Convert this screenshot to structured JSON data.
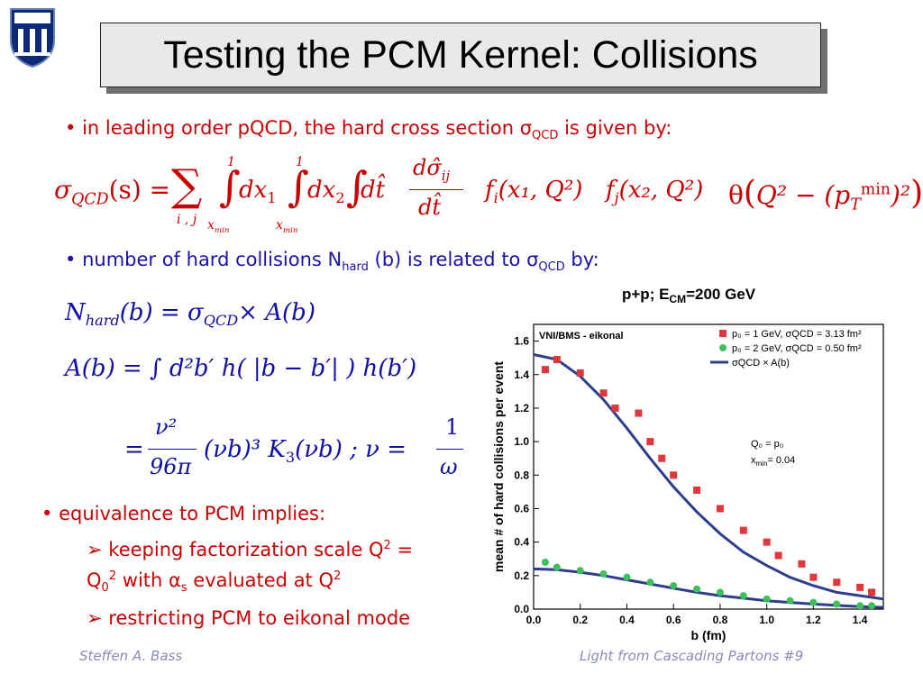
{
  "slide": {
    "title": "Testing the PCM Kernel: Collisions",
    "crest_icon": "university-crest-icon",
    "bullet1": {
      "text": "in leading order pQCD, the hard cross section σ",
      "sub": "QCD",
      "tail": " is given by:"
    },
    "formula1": {
      "lhs": "σ",
      "lhs_sub": "QCD",
      "lhs_arg": "(s) =",
      "sum_sub": "i , j",
      "int_upper": "1",
      "int_lower": "x",
      "int_lower_sub": "min",
      "dx1": "dx",
      "dx1_sub": "1",
      "dx2": "dx",
      "dx2_sub": "2",
      "dt": "dt̂",
      "frac_num": "dσ̂",
      "frac_num_sub": "ij",
      "frac_den": "dt̂",
      "fi": "f",
      "fi_sub": "i",
      "fi_arg": "(x₁, Q²)",
      "fj": "f",
      "fj_sub": "j",
      "fj_arg": "(x₂, Q²)",
      "theta": "θ",
      "theta_arg": "Q² − (p",
      "pt_sub": "T",
      "pt_sup": "min",
      "theta_tail": ")²"
    },
    "bullet2": {
      "text": "number of hard collisions N",
      "sub": "hard",
      "mid": " (b) is related to σ",
      "sub2": "QCD",
      "tail": " by:"
    },
    "formula2": {
      "lhs": "N",
      "lhs_sub": "hard",
      "rhs": "(b) = σ",
      "rhs_sub": "QCD",
      "tail": "× A(b)"
    },
    "formula3": {
      "text": "A(b) = ∫ d²b′  h( |b − b′| )  h(b′)"
    },
    "formula4": {
      "lead": "=",
      "num": "ν²",
      "den": "96π",
      "mid": "(νb)³  K",
      "k_sub": "3",
      "tail": "(νb) ; ν =",
      "num2": "1",
      "den2": "ω"
    },
    "bullet3": "equivalence to PCM implies:",
    "sub1_line1": "keeping factorization scale Q",
    "sub1_sup": "2",
    "sub1_eq": " =",
    "sub1_line2a": "Q",
    "sub1_line2a_sub": "0",
    "sub1_line2a_sup": "2",
    "sub1_line2b": " with α",
    "sub1_line2b_sub": "s",
    "sub1_line2c": "  evaluated at Q",
    "sub1_line2c_sup": "2",
    "sub2": "restricting PCM to eikonal mode",
    "footer_left": "Steffen A. Bass",
    "footer_right": "Light from Cascading Partons  #9",
    "colors": {
      "accent_red": "#cc0000",
      "accent_blue": "#1b12a8",
      "curve": "#2c3e8c",
      "marker_red": "#e0373b",
      "marker_green": "#3cc25a"
    }
  },
  "chart_data": {
    "type": "scatter",
    "title": "p+p; E",
    "title_sub": "CM",
    "title_tail": "=200 GeV",
    "xlabel": "b (fm)",
    "ylabel": "mean # of hard collisions per event",
    "xlim": [
      0,
      1.5
    ],
    "ylim": [
      0,
      1.7
    ],
    "xticks": [
      "0.0",
      "0.2",
      "0.4",
      "0.6",
      "0.8",
      "1.0",
      "1.2",
      "1.4"
    ],
    "yticks": [
      "0.0",
      "0.2",
      "0.4",
      "0.6",
      "0.8",
      "1.0",
      "1.2",
      "1.4",
      "1.6"
    ],
    "top_left_label": "VNI/BMS - eikonal",
    "annotation1": "Q₀ = p₀",
    "annotation2": "x",
    "annotation2_sub": "min",
    "annotation2_tail": "= 0.04",
    "legend_position": "top-right",
    "series": [
      {
        "name": "p₀ = 1 GeV, σQCD = 3.13 fm²",
        "marker": "square",
        "x": [
          0.05,
          0.1,
          0.2,
          0.3,
          0.35,
          0.45,
          0.5,
          0.55,
          0.6,
          0.7,
          0.8,
          0.9,
          1.0,
          1.05,
          1.15,
          1.2,
          1.3,
          1.4,
          1.45
        ],
        "y": [
          1.43,
          1.49,
          1.41,
          1.29,
          1.2,
          1.17,
          1.0,
          0.9,
          0.8,
          0.71,
          0.6,
          0.47,
          0.4,
          0.32,
          0.27,
          0.19,
          0.16,
          0.13,
          0.1
        ]
      },
      {
        "name": "p₀ = 2 GeV, σQCD = 0.50 fm²",
        "marker": "circle",
        "x": [
          0.05,
          0.1,
          0.2,
          0.3,
          0.4,
          0.5,
          0.6,
          0.7,
          0.8,
          0.9,
          1.0,
          1.1,
          1.2,
          1.3,
          1.4,
          1.45
        ],
        "y": [
          0.28,
          0.25,
          0.23,
          0.21,
          0.19,
          0.16,
          0.14,
          0.12,
          0.1,
          0.08,
          0.06,
          0.05,
          0.04,
          0.03,
          0.02,
          0.02
        ]
      },
      {
        "name": "σQCD × A(b)",
        "marker": "line",
        "x": [
          0.0,
          0.1,
          0.2,
          0.3,
          0.4,
          0.5,
          0.6,
          0.7,
          0.8,
          0.9,
          1.0,
          1.1,
          1.2,
          1.3,
          1.4,
          1.5
        ],
        "y": [
          1.52,
          1.49,
          1.39,
          1.25,
          1.08,
          0.9,
          0.73,
          0.58,
          0.45,
          0.34,
          0.26,
          0.19,
          0.14,
          0.1,
          0.08,
          0.06
        ]
      },
      {
        "name": "σQCD × A(b)",
        "marker": "line",
        "x": [
          0.0,
          0.1,
          0.2,
          0.3,
          0.4,
          0.5,
          0.6,
          0.7,
          0.8,
          0.9,
          1.0,
          1.1,
          1.2,
          1.3,
          1.4,
          1.5
        ],
        "y": [
          0.24,
          0.235,
          0.22,
          0.2,
          0.175,
          0.15,
          0.125,
          0.1,
          0.08,
          0.065,
          0.05,
          0.04,
          0.03,
          0.022,
          0.015,
          0.01
        ]
      }
    ]
  }
}
